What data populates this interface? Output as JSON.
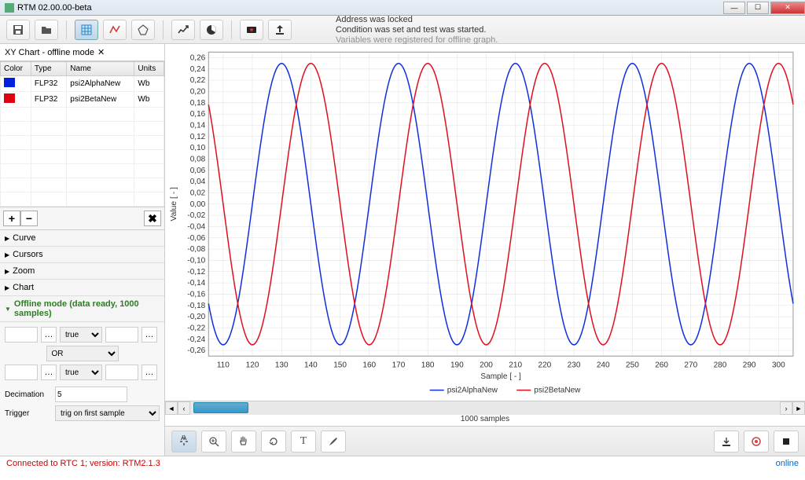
{
  "window": {
    "title": "RTM 02.00.00-beta"
  },
  "toolbar_msgs": [
    "Address was locked",
    "Condition was set and test was started.",
    "Variables were registered for offline graph."
  ],
  "tab": {
    "title": "XY Chart - offline mode"
  },
  "var_table": {
    "columns": [
      "Color",
      "Type",
      "Name",
      "Units"
    ],
    "rows": [
      {
        "color": "#0020e0",
        "type": "FLP32",
        "name": "psi2AlphaNew",
        "units": "Wb"
      },
      {
        "color": "#e00010",
        "type": "FLP32",
        "name": "psi2BetaNew",
        "units": "Wb"
      }
    ],
    "empty_rows": 7
  },
  "accordion": {
    "items": [
      "Curve",
      "Cursors",
      "Zoom",
      "Chart"
    ],
    "offline_label": "Offline mode (data ready, 1000 samples)"
  },
  "offline": {
    "cond_op1": "true",
    "logic": "OR",
    "cond_op2": "true",
    "decimation_label": "Decimation",
    "decimation": "5",
    "trigger_label": "Trigger",
    "trigger": "trig on first sample"
  },
  "chart": {
    "xlabel": "Sample [ - ]",
    "ylabel": "Value [ - ]",
    "x_ticks": [
      110,
      120,
      130,
      140,
      150,
      160,
      170,
      180,
      190,
      200,
      210,
      220,
      230,
      240,
      250,
      260,
      270,
      280,
      290,
      300
    ],
    "xlim": [
      105,
      305
    ],
    "y_ticks": [
      -0.26,
      -0.24,
      -0.22,
      -0.2,
      -0.18,
      -0.16,
      -0.14,
      -0.12,
      -0.1,
      -0.08,
      -0.06,
      -0.04,
      -0.02,
      0.0,
      0.02,
      0.04,
      0.06,
      0.08,
      0.1,
      0.12,
      0.14,
      0.16,
      0.18,
      0.2,
      0.22,
      0.24,
      0.26
    ],
    "ylim": [
      -0.27,
      0.27
    ],
    "series": [
      {
        "name": "psi2AlphaNew",
        "color": "#1030e0",
        "amplitude": 0.25,
        "period": 40,
        "phase": 0
      },
      {
        "name": "psi2BetaNew",
        "color": "#e01020",
        "amplitude": 0.25,
        "period": 40,
        "phase": 10
      }
    ],
    "samples_label": "1000 samples",
    "grid_color": "#e0e0e0",
    "plot_bg": "#ffffff"
  },
  "status": {
    "left": "Connected to RTC 1; version: RTM2.1.3",
    "right": "online"
  }
}
